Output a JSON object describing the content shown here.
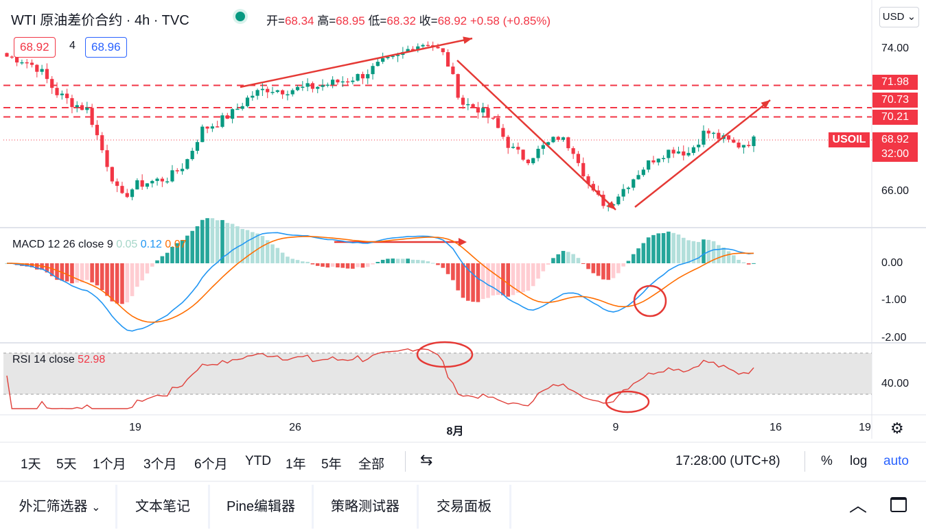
{
  "header": {
    "title": "WTI 原油差价合约 · 4h · TVC",
    "ohlc": [
      {
        "k": "开=",
        "v": "68.34"
      },
      {
        "k": "高=",
        "v": "68.95"
      },
      {
        "k": "低=",
        "v": "68.32"
      },
      {
        "k": "收=",
        "v": "68.92"
      }
    ],
    "change": "+0.58 (+0.85%)",
    "bid": "68.92",
    "spread": "4",
    "ask": "68.96",
    "currency": "USD"
  },
  "panes": {
    "macd_label": "MACD 12 26 close 9",
    "macd_values": [
      "0.05",
      "0.12",
      "0.07"
    ],
    "rsi_label": "RSI 14 close",
    "rsi_value": "52.98"
  },
  "price_axis": {
    "ticks": [
      "74.00",
      "66.00"
    ],
    "level_tags": [
      "71.98",
      "70.73",
      "70.21"
    ],
    "last_price": "68.92",
    "countdown": "32:00",
    "symbol_tag": "USOIL",
    "macd_ticks": [
      "0.00",
      "-1.00",
      "-2.00"
    ],
    "rsi_ticks": [
      "40.00"
    ]
  },
  "time_axis": {
    "ticks": [
      "19",
      "26",
      "8月",
      "9",
      "16",
      "19"
    ]
  },
  "range_bar": {
    "ranges": [
      "1天",
      "5天",
      "1个月",
      "3个月",
      "6个月",
      "YTD",
      "1年",
      "5年",
      "全部"
    ],
    "clock": "17:28:00 (UTC+8)",
    "percent": "%",
    "log": "log",
    "auto": "auto"
  },
  "tabs": [
    "外汇筛选器",
    "文本笔记",
    "Pine编辑器",
    "策略测试器",
    "交易面板"
  ],
  "colors": {
    "up": "#089981",
    "down": "#f23645",
    "macd": "#2196f3",
    "signal": "#ff6d00",
    "rsi": "#e0403a",
    "accent": "#2962ff"
  },
  "chart_data": {
    "type": "candlestick",
    "symbol": "USOIL",
    "timeframe": "4h",
    "price_axis_ticks": [
      66.0,
      74.0
    ],
    "horizontal_levels": [
      71.98,
      70.73,
      70.21
    ],
    "last_price": 68.92,
    "close_path": [
      73.6,
      73.4,
      72.9,
      71.6,
      71.0,
      70.6,
      68.0,
      65.6,
      66.4,
      66.6,
      66.8,
      67.6,
      69.5,
      69.9,
      70.5,
      71.4,
      71.8,
      71.7,
      71.8,
      71.9,
      72.1,
      72.3,
      72.6,
      73.2,
      73.5,
      74.2,
      74.4,
      73.6,
      71.0,
      70.7,
      69.9,
      68.5,
      67.8,
      68.5,
      69.1,
      68.3,
      66.0,
      65.2,
      66.2,
      67.2,
      68.0,
      68.4,
      68.2,
      69.4,
      69.0,
      68.6,
      68.9
    ],
    "annotations": [
      "trend arrow up: 19–26 rally",
      "trend arrow down from 8月 high",
      "trend arrow up after 9 low",
      "MACD bullish cross circled near 9",
      "RSI peak circled near 8月",
      "RSI trough circled near 9"
    ],
    "macd": {
      "fast": 12,
      "slow": 26,
      "signal": 9,
      "histogram": 0.05,
      "macd": 0.12,
      "signal_value": 0.07,
      "y_ticks": [
        0.0,
        -1.0,
        -2.0
      ]
    },
    "rsi": {
      "length": 14,
      "value": 52.98,
      "y_ticks": [
        40.0
      ]
    }
  }
}
